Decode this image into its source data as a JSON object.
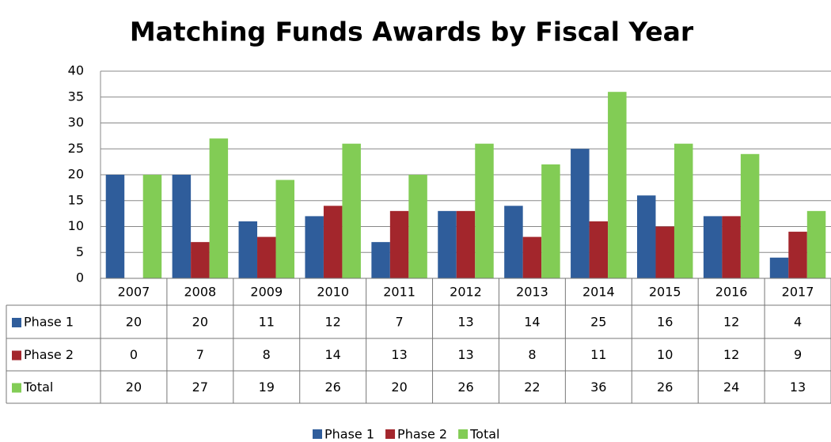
{
  "chart_data": {
    "type": "bar",
    "title": "Matching Funds Awards by Fiscal Year",
    "categories": [
      "2007",
      "2008",
      "2009",
      "2010",
      "2011",
      "2012",
      "2013",
      "2014",
      "2015",
      "2016",
      "2017"
    ],
    "series": [
      {
        "name": "Phase 1",
        "color": "#2f5d9b",
        "values": [
          20,
          20,
          11,
          12,
          7,
          13,
          14,
          25,
          16,
          12,
          4
        ]
      },
      {
        "name": "Phase 2",
        "color": "#a3262c",
        "values": [
          0,
          7,
          8,
          14,
          13,
          13,
          8,
          11,
          10,
          12,
          9
        ]
      },
      {
        "name": "Total",
        "color": "#82cc55",
        "values": [
          20,
          27,
          19,
          26,
          20,
          26,
          22,
          36,
          26,
          24,
          13
        ]
      }
    ],
    "ylim": [
      0,
      40
    ],
    "yticks": [
      0,
      5,
      10,
      15,
      20,
      25,
      30,
      35,
      40
    ],
    "grid": true,
    "legend": "bottom"
  }
}
